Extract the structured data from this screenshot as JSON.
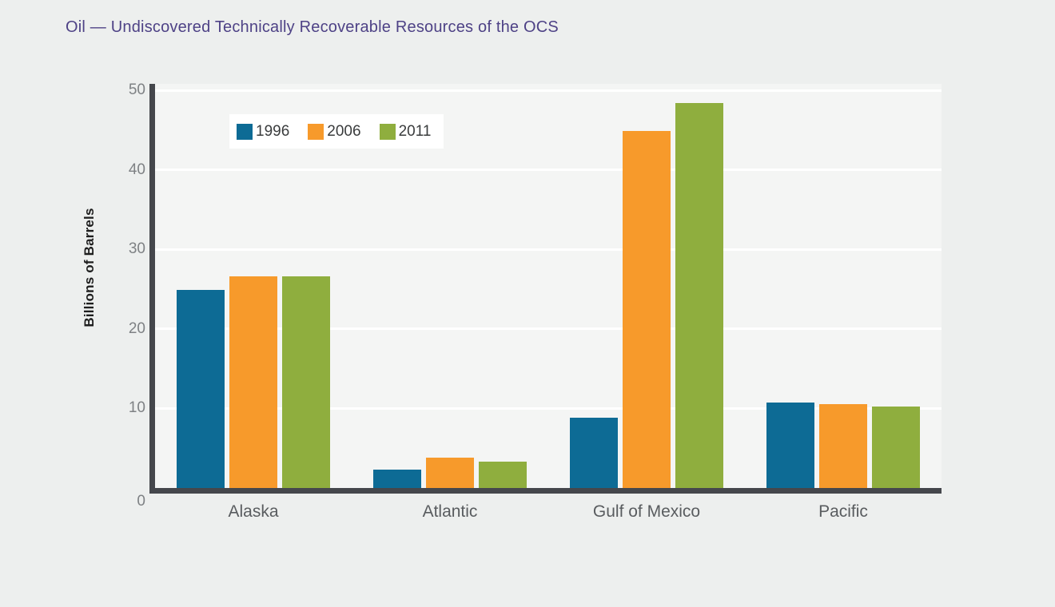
{
  "title": "Oil — Undiscovered Technically Recoverable Resources of the OCS",
  "chart_data": {
    "type": "bar",
    "categories": [
      "Alaska",
      "Atlantic",
      "Gulf of Mexico",
      "Pacific"
    ],
    "series": [
      {
        "name": "1996",
        "color": "#0d6b95",
        "values": [
          24.9,
          2.3,
          8.8,
          10.7
        ]
      },
      {
        "name": "2006",
        "color": "#f79a2b",
        "values": [
          26.6,
          3.8,
          44.9,
          10.5
        ]
      },
      {
        "name": "2011",
        "color": "#8fae3e",
        "values": [
          26.6,
          3.3,
          48.4,
          10.2
        ]
      }
    ],
    "ylabel": "Billions of Barrels",
    "xlabel": "",
    "ylim": [
      0,
      50
    ],
    "yticks": [
      0,
      10,
      20,
      30,
      40,
      50
    ],
    "grid": "horizontal",
    "legend_position": "top-left-inside"
  },
  "colors": {
    "page_background": "#edefee",
    "plot_background": "#f4f5f4",
    "gridline": "#ffffff",
    "axis": "#45474c",
    "title_text": "#4e4286",
    "tick_text": "#7e8184",
    "category_text": "#595c5f",
    "legend_background": "#ffffff",
    "legend_text": "#3a3c3d",
    "ylabel_text": "#1e1e1e"
  }
}
